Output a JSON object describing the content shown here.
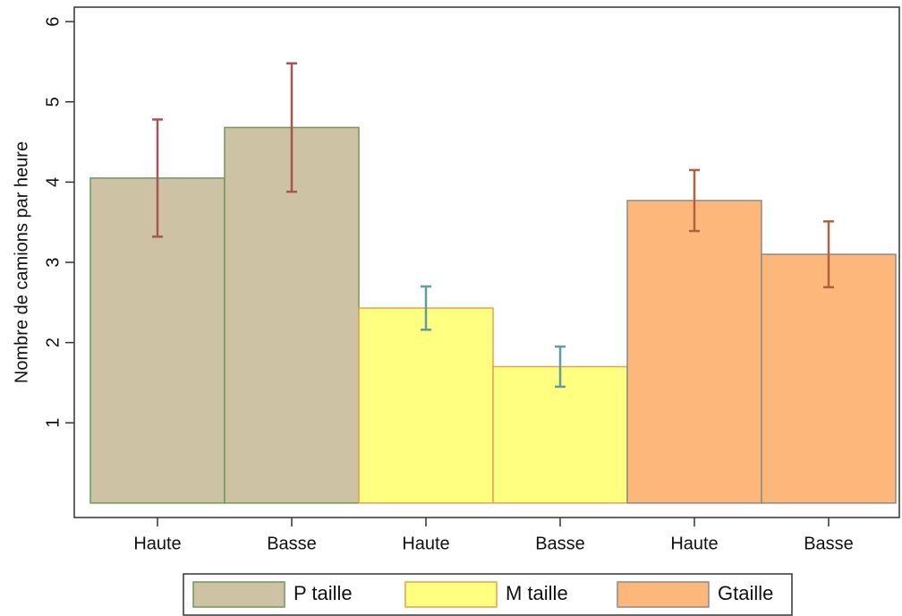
{
  "chart_data": {
    "type": "bar",
    "y_label": "Nombre de camions par heure",
    "categories": [
      "Haute",
      "Basse",
      "Haute",
      "Basse",
      "Haute",
      "Basse"
    ],
    "series": [
      {
        "name": "P taille",
        "color": "#cdc3a4",
        "edge_color": "#6a9a5a",
        "error_color": "#a65454",
        "values": [
          4.05,
          4.68,
          null,
          null,
          null,
          null
        ],
        "errors": [
          0.73,
          0.8,
          null,
          null,
          null,
          null
        ]
      },
      {
        "name": "M taille",
        "color": "#ffff80",
        "edge_color": "#e8a050",
        "error_color": "#5f9e9e",
        "values": [
          null,
          null,
          2.43,
          1.7,
          null,
          null
        ],
        "errors": [
          null,
          null,
          0.27,
          0.25,
          null,
          null
        ]
      },
      {
        "name": "Gtaille",
        "color": "#fdb77a",
        "edge_color": "#8a8a8a",
        "error_color": "#b0623a",
        "values": [
          null,
          null,
          null,
          null,
          3.77,
          3.1
        ],
        "errors": [
          null,
          null,
          null,
          null,
          0.38,
          0.41
        ]
      }
    ],
    "ylim": [
      -0.18,
      6.18
    ],
    "yticks": [
      1,
      2,
      3,
      4,
      5,
      6
    ],
    "grid": false
  }
}
